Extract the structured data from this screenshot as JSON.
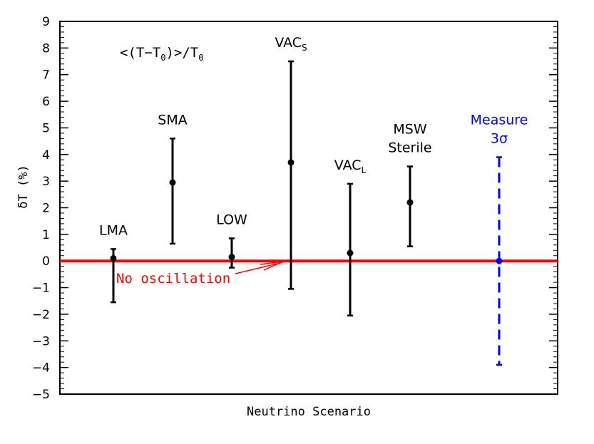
{
  "chart_data": {
    "type": "errorbar",
    "title": "",
    "xlabel": "Neutrino Scenario",
    "ylabel": "δT (%)",
    "ylim": [
      -5,
      9
    ],
    "yticks": [
      -5,
      -4,
      -3,
      -2,
      -1,
      0,
      1,
      2,
      3,
      4,
      5,
      6,
      7,
      8,
      9
    ],
    "annotation": {
      "text": "<(T−T",
      "sub": "0",
      "mid": ")>/T",
      "sub2": "0"
    },
    "reference_line": {
      "y": 0,
      "label": "No oscillation",
      "color": "#ff0000"
    },
    "points": [
      {
        "label": "LMA",
        "label_sub": "",
        "label_line2": "",
        "y": 0.1,
        "low": -1.55,
        "high": 0.45,
        "style": "solid",
        "color": "#000000"
      },
      {
        "label": "SMA",
        "label_sub": "",
        "label_line2": "",
        "y": 2.95,
        "low": 0.65,
        "high": 4.6,
        "style": "solid",
        "color": "#000000"
      },
      {
        "label": "LOW",
        "label_sub": "",
        "label_line2": "",
        "y": 0.15,
        "low": -0.25,
        "high": 0.85,
        "style": "solid",
        "color": "#000000"
      },
      {
        "label": "VAC",
        "label_sub": "S",
        "label_line2": "",
        "y": 3.7,
        "low": -1.05,
        "high": 7.5,
        "style": "solid",
        "color": "#000000"
      },
      {
        "label": "VAC",
        "label_sub": "L",
        "label_line2": "",
        "y": 0.3,
        "low": -2.05,
        "high": 2.9,
        "style": "solid",
        "color": "#000000"
      },
      {
        "label": "MSW",
        "label_sub": "",
        "label_line2": "Sterile",
        "y": 2.2,
        "low": 0.55,
        "high": 3.55,
        "style": "solid",
        "color": "#000000"
      },
      {
        "label": "Measure",
        "label_sub": "",
        "label_line2": "3σ",
        "y": 0,
        "low": -3.9,
        "high": 3.9,
        "style": "dashed",
        "color": "#0000ff"
      }
    ]
  }
}
